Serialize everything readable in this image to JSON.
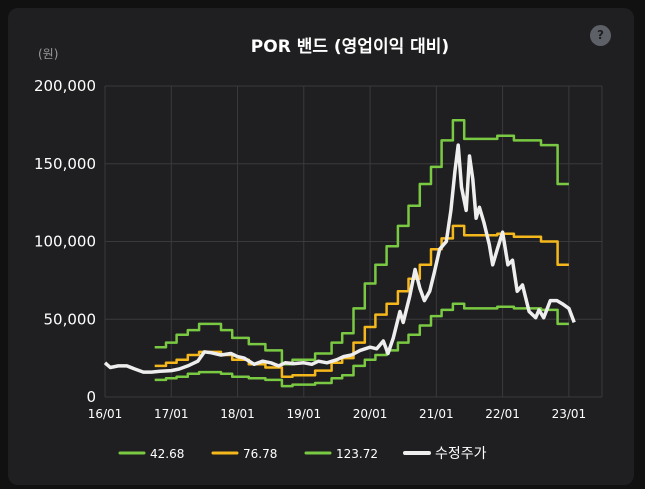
{
  "chart_data": {
    "type": "line",
    "title": "POR 밴드 (영업이익 대비)",
    "ylabel": "(원)",
    "ylim": [
      0,
      200000
    ],
    "yticks": [
      0,
      50000,
      100000,
      150000,
      200000
    ],
    "ytick_labels": [
      "0",
      "50,000",
      "100,000",
      "150,000",
      "200,000"
    ],
    "xlim": [
      2016.0,
      2023.5
    ],
    "xticks": [
      2016,
      2017,
      2018,
      2019,
      2020,
      2021,
      2022,
      2023
    ],
    "xtick_labels": [
      "16/01",
      "17/01",
      "18/01",
      "19/01",
      "20/01",
      "21/01",
      "22/01",
      "23/01"
    ],
    "grid": true,
    "legend_position": "bottom",
    "series": [
      {
        "name": "42.68",
        "color": "#7ac943",
        "points": [
          [
            2016.75,
            11000
          ],
          [
            2016.92,
            11000
          ],
          [
            2016.92,
            12000
          ],
          [
            2017.08,
            12000
          ],
          [
            2017.08,
            13000
          ],
          [
            2017.25,
            13000
          ],
          [
            2017.25,
            15000
          ],
          [
            2017.42,
            15000
          ],
          [
            2017.42,
            16000
          ],
          [
            2017.75,
            16000
          ],
          [
            2017.75,
            15000
          ],
          [
            2017.92,
            15000
          ],
          [
            2017.92,
            13000
          ],
          [
            2018.17,
            13000
          ],
          [
            2018.17,
            12000
          ],
          [
            2018.42,
            12000
          ],
          [
            2018.42,
            11000
          ],
          [
            2018.67,
            11000
          ],
          [
            2018.67,
            7000
          ],
          [
            2018.83,
            7000
          ],
          [
            2018.83,
            8000
          ],
          [
            2019.17,
            8000
          ],
          [
            2019.17,
            9000
          ],
          [
            2019.42,
            9000
          ],
          [
            2019.42,
            12000
          ],
          [
            2019.58,
            12000
          ],
          [
            2019.58,
            14000
          ],
          [
            2019.75,
            14000
          ],
          [
            2019.75,
            20000
          ],
          [
            2019.92,
            20000
          ],
          [
            2019.92,
            24000
          ],
          [
            2020.08,
            24000
          ],
          [
            2020.08,
            27000
          ],
          [
            2020.25,
            27000
          ],
          [
            2020.25,
            30000
          ],
          [
            2020.42,
            30000
          ],
          [
            2020.42,
            35000
          ],
          [
            2020.58,
            35000
          ],
          [
            2020.58,
            40000
          ],
          [
            2020.75,
            40000
          ],
          [
            2020.75,
            46000
          ],
          [
            2020.92,
            46000
          ],
          [
            2020.92,
            52000
          ],
          [
            2021.08,
            52000
          ],
          [
            2021.08,
            56000
          ],
          [
            2021.25,
            56000
          ],
          [
            2021.25,
            60000
          ],
          [
            2021.42,
            60000
          ],
          [
            2021.42,
            57000
          ],
          [
            2021.92,
            57000
          ],
          [
            2021.92,
            58000
          ],
          [
            2022.17,
            58000
          ],
          [
            2022.17,
            57000
          ],
          [
            2022.58,
            57000
          ],
          [
            2022.58,
            56000
          ],
          [
            2022.83,
            56000
          ],
          [
            2022.83,
            47000
          ],
          [
            2023.0,
            47000
          ]
        ]
      },
      {
        "name": "76.78",
        "color": "#f5b81c",
        "points": [
          [
            2016.75,
            20000
          ],
          [
            2016.92,
            20000
          ],
          [
            2016.92,
            22000
          ],
          [
            2017.08,
            22000
          ],
          [
            2017.08,
            24000
          ],
          [
            2017.25,
            24000
          ],
          [
            2017.25,
            27000
          ],
          [
            2017.42,
            27000
          ],
          [
            2017.42,
            29000
          ],
          [
            2017.75,
            29000
          ],
          [
            2017.75,
            27000
          ],
          [
            2017.92,
            27000
          ],
          [
            2017.92,
            24000
          ],
          [
            2018.17,
            24000
          ],
          [
            2018.17,
            21000
          ],
          [
            2018.42,
            21000
          ],
          [
            2018.42,
            19000
          ],
          [
            2018.67,
            19000
          ],
          [
            2018.67,
            13000
          ],
          [
            2018.83,
            13000
          ],
          [
            2018.83,
            14000
          ],
          [
            2019.17,
            14000
          ],
          [
            2019.17,
            17000
          ],
          [
            2019.42,
            17000
          ],
          [
            2019.42,
            22000
          ],
          [
            2019.58,
            22000
          ],
          [
            2019.58,
            25000
          ],
          [
            2019.75,
            25000
          ],
          [
            2019.75,
            35000
          ],
          [
            2019.92,
            35000
          ],
          [
            2019.92,
            45000
          ],
          [
            2020.08,
            45000
          ],
          [
            2020.08,
            53000
          ],
          [
            2020.25,
            53000
          ],
          [
            2020.25,
            60000
          ],
          [
            2020.42,
            60000
          ],
          [
            2020.42,
            68000
          ],
          [
            2020.58,
            68000
          ],
          [
            2020.58,
            76000
          ],
          [
            2020.75,
            76000
          ],
          [
            2020.75,
            85000
          ],
          [
            2020.92,
            85000
          ],
          [
            2020.92,
            95000
          ],
          [
            2021.08,
            95000
          ],
          [
            2021.08,
            102000
          ],
          [
            2021.25,
            102000
          ],
          [
            2021.25,
            110000
          ],
          [
            2021.42,
            110000
          ],
          [
            2021.42,
            104000
          ],
          [
            2021.92,
            104000
          ],
          [
            2021.92,
            105000
          ],
          [
            2022.17,
            105000
          ],
          [
            2022.17,
            103000
          ],
          [
            2022.58,
            103000
          ],
          [
            2022.58,
            100000
          ],
          [
            2022.83,
            100000
          ],
          [
            2022.83,
            85000
          ],
          [
            2023.0,
            85000
          ]
        ]
      },
      {
        "name": "123.72",
        "color": "#7ac943",
        "points": [
          [
            2016.75,
            32000
          ],
          [
            2016.92,
            32000
          ],
          [
            2016.92,
            35000
          ],
          [
            2017.08,
            35000
          ],
          [
            2017.08,
            40000
          ],
          [
            2017.25,
            40000
          ],
          [
            2017.25,
            43000
          ],
          [
            2017.42,
            43000
          ],
          [
            2017.42,
            47000
          ],
          [
            2017.75,
            47000
          ],
          [
            2017.75,
            43000
          ],
          [
            2017.92,
            43000
          ],
          [
            2017.92,
            38000
          ],
          [
            2018.17,
            38000
          ],
          [
            2018.17,
            34000
          ],
          [
            2018.42,
            34000
          ],
          [
            2018.42,
            30000
          ],
          [
            2018.67,
            30000
          ],
          [
            2018.67,
            21000
          ],
          [
            2018.83,
            21000
          ],
          [
            2018.83,
            24000
          ],
          [
            2019.17,
            24000
          ],
          [
            2019.17,
            28000
          ],
          [
            2019.42,
            28000
          ],
          [
            2019.42,
            35000
          ],
          [
            2019.58,
            35000
          ],
          [
            2019.58,
            41000
          ],
          [
            2019.75,
            41000
          ],
          [
            2019.75,
            57000
          ],
          [
            2019.92,
            57000
          ],
          [
            2019.92,
            73000
          ],
          [
            2020.08,
            73000
          ],
          [
            2020.08,
            85000
          ],
          [
            2020.25,
            85000
          ],
          [
            2020.25,
            97000
          ],
          [
            2020.42,
            97000
          ],
          [
            2020.42,
            110000
          ],
          [
            2020.58,
            110000
          ],
          [
            2020.58,
            123000
          ],
          [
            2020.75,
            123000
          ],
          [
            2020.75,
            137000
          ],
          [
            2020.92,
            137000
          ],
          [
            2020.92,
            148000
          ],
          [
            2021.08,
            148000
          ],
          [
            2021.08,
            165000
          ],
          [
            2021.25,
            165000
          ],
          [
            2021.25,
            178000
          ],
          [
            2021.42,
            178000
          ],
          [
            2021.42,
            166000
          ],
          [
            2021.92,
            166000
          ],
          [
            2021.92,
            168000
          ],
          [
            2022.17,
            168000
          ],
          [
            2022.17,
            165000
          ],
          [
            2022.58,
            165000
          ],
          [
            2022.58,
            162000
          ],
          [
            2022.83,
            162000
          ],
          [
            2022.83,
            137000
          ],
          [
            2023.0,
            137000
          ]
        ]
      },
      {
        "name": "수정주가",
        "color": "#eeeeee",
        "points": [
          [
            2016.0,
            22000
          ],
          [
            2016.08,
            19000
          ],
          [
            2016.2,
            20000
          ],
          [
            2016.33,
            20000
          ],
          [
            2016.45,
            18000
          ],
          [
            2016.58,
            16000
          ],
          [
            2016.7,
            16000
          ],
          [
            2016.83,
            16500
          ],
          [
            2017.0,
            17000
          ],
          [
            2017.12,
            18000
          ],
          [
            2017.25,
            20000
          ],
          [
            2017.4,
            23000
          ],
          [
            2017.5,
            29000
          ],
          [
            2017.6,
            28500
          ],
          [
            2017.75,
            27000
          ],
          [
            2017.9,
            28000
          ],
          [
            2018.0,
            26000
          ],
          [
            2018.1,
            25000
          ],
          [
            2018.25,
            21000
          ],
          [
            2018.38,
            23000
          ],
          [
            2018.5,
            22000
          ],
          [
            2018.62,
            20000
          ],
          [
            2018.72,
            22000
          ],
          [
            2018.85,
            21500
          ],
          [
            2019.0,
            22000
          ],
          [
            2019.12,
            21000
          ],
          [
            2019.22,
            23000
          ],
          [
            2019.35,
            22000
          ],
          [
            2019.5,
            24000
          ],
          [
            2019.6,
            26000
          ],
          [
            2019.72,
            27000
          ],
          [
            2019.85,
            30000
          ],
          [
            2020.0,
            32000
          ],
          [
            2020.1,
            31000
          ],
          [
            2020.2,
            36000
          ],
          [
            2020.27,
            28000
          ],
          [
            2020.35,
            38000
          ],
          [
            2020.45,
            55000
          ],
          [
            2020.5,
            48000
          ],
          [
            2020.6,
            65000
          ],
          [
            2020.68,
            82000
          ],
          [
            2020.75,
            70000
          ],
          [
            2020.82,
            62000
          ],
          [
            2020.9,
            68000
          ],
          [
            2020.97,
            80000
          ],
          [
            2021.05,
            95000
          ],
          [
            2021.15,
            100000
          ],
          [
            2021.22,
            120000
          ],
          [
            2021.28,
            145000
          ],
          [
            2021.33,
            162000
          ],
          [
            2021.38,
            135000
          ],
          [
            2021.45,
            120000
          ],
          [
            2021.5,
            155000
          ],
          [
            2021.55,
            140000
          ],
          [
            2021.6,
            115000
          ],
          [
            2021.65,
            122000
          ],
          [
            2021.72,
            112000
          ],
          [
            2021.8,
            98000
          ],
          [
            2021.85,
            85000
          ],
          [
            2021.92,
            95000
          ],
          [
            2022.0,
            106000
          ],
          [
            2022.08,
            85000
          ],
          [
            2022.15,
            88000
          ],
          [
            2022.22,
            68000
          ],
          [
            2022.3,
            72000
          ],
          [
            2022.4,
            55000
          ],
          [
            2022.5,
            51000
          ],
          [
            2022.55,
            56000
          ],
          [
            2022.62,
            51000
          ],
          [
            2022.72,
            62000
          ],
          [
            2022.82,
            62000
          ],
          [
            2022.9,
            60000
          ],
          [
            2023.0,
            57000
          ],
          [
            2023.08,
            48000
          ]
        ]
      }
    ]
  },
  "help_label": "?"
}
